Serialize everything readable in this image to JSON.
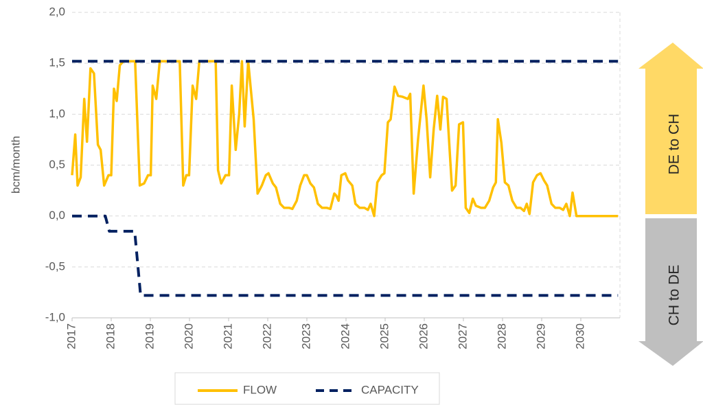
{
  "chart_data": {
    "type": "line",
    "y_label": "bcm/month",
    "xlim": [
      2017,
      2031
    ],
    "xticks": [
      2017,
      2018,
      2019,
      2020,
      2021,
      2022,
      2023,
      2024,
      2025,
      2026,
      2027,
      2028,
      2029,
      2030
    ],
    "ylim": [
      -1.0,
      2.0
    ],
    "yticks": [
      {
        "value": -1.0,
        "label": "-1,0"
      },
      {
        "value": -0.5,
        "label": "-0,5"
      },
      {
        "value": 0.0,
        "label": "0,0"
      },
      {
        "value": 0.5,
        "label": "0,5"
      },
      {
        "value": 1.0,
        "label": "1,0"
      },
      {
        "value": 1.5,
        "label": "1,5"
      },
      {
        "value": 2.0,
        "label": "2,0"
      }
    ],
    "grid": true,
    "legend": "bottom",
    "annotations": [
      "DE to CH",
      "CH to DE"
    ],
    "series": [
      {
        "name": "FLOW",
        "color": "#FFC000",
        "style": "solid",
        "x": [
          2017.0,
          2017.08,
          2017.14,
          2017.22,
          2017.31,
          2017.38,
          2017.47,
          2017.56,
          2017.66,
          2017.73,
          2017.82,
          2017.93,
          2018.0,
          2018.07,
          2018.14,
          2018.22,
          2018.31,
          2018.61,
          2018.73,
          2018.84,
          2018.94,
          2019.01,
          2019.06,
          2019.15,
          2019.24,
          2019.75,
          2019.84,
          2019.92,
          2019.99,
          2020.08,
          2020.17,
          2020.25,
          2020.67,
          2020.73,
          2020.81,
          2020.92,
          2021.01,
          2021.08,
          2021.18,
          2021.27,
          2021.34,
          2021.41,
          2021.5,
          2021.64,
          2021.74,
          2021.85,
          2021.95,
          2022.02,
          2022.13,
          2022.21,
          2022.32,
          2022.42,
          2022.55,
          2022.63,
          2022.74,
          2022.83,
          2022.93,
          2023.0,
          2023.09,
          2023.18,
          2023.28,
          2023.39,
          2023.51,
          2023.6,
          2023.7,
          2023.75,
          2023.81,
          2023.88,
          2023.98,
          2024.05,
          2024.16,
          2024.24,
          2024.35,
          2024.47,
          2024.56,
          2024.63,
          2024.72,
          2024.8,
          2024.91,
          2024.98,
          2025.07,
          2025.14,
          2025.24,
          2025.33,
          2025.45,
          2025.58,
          2025.64,
          2025.73,
          2025.84,
          2025.98,
          2026.06,
          2026.15,
          2026.24,
          2026.33,
          2026.41,
          2026.48,
          2026.57,
          2026.71,
          2026.8,
          2026.89,
          2026.99,
          2027.06,
          2027.15,
          2027.24,
          2027.32,
          2027.45,
          2027.55,
          2027.66,
          2027.76,
          2027.83,
          2027.88,
          2027.97,
          2028.06,
          2028.15,
          2028.25,
          2028.36,
          2028.46,
          2028.55,
          2028.62,
          2028.69,
          2028.78,
          2028.88,
          2028.97,
          2029.06,
          2029.14,
          2029.25,
          2029.35,
          2029.46,
          2029.55,
          2029.63,
          2029.72,
          2029.79,
          2029.89,
          2030.95
        ],
        "values": [
          0.4,
          0.8,
          0.3,
          0.38,
          1.15,
          0.73,
          1.45,
          1.4,
          0.7,
          0.65,
          0.3,
          0.4,
          0.4,
          1.25,
          1.13,
          1.48,
          1.52,
          1.52,
          0.3,
          0.32,
          0.4,
          0.4,
          1.28,
          1.15,
          1.52,
          1.52,
          0.3,
          0.4,
          0.4,
          1.28,
          1.15,
          1.52,
          1.52,
          0.45,
          0.32,
          0.4,
          0.4,
          1.28,
          0.65,
          1.0,
          1.52,
          0.88,
          1.52,
          0.95,
          0.22,
          0.3,
          0.4,
          0.42,
          0.32,
          0.28,
          0.12,
          0.08,
          0.08,
          0.07,
          0.15,
          0.3,
          0.4,
          0.4,
          0.32,
          0.28,
          0.12,
          0.08,
          0.08,
          0.07,
          0.22,
          0.2,
          0.15,
          0.4,
          0.42,
          0.35,
          0.3,
          0.12,
          0.08,
          0.08,
          0.06,
          0.12,
          0.0,
          0.33,
          0.4,
          0.42,
          0.92,
          0.95,
          1.27,
          1.18,
          1.17,
          1.15,
          1.2,
          0.22,
          0.75,
          1.28,
          0.95,
          0.38,
          0.85,
          1.18,
          0.85,
          1.17,
          1.15,
          0.25,
          0.3,
          0.9,
          0.92,
          0.08,
          0.03,
          0.17,
          0.1,
          0.08,
          0.08,
          0.15,
          0.28,
          0.33,
          0.95,
          0.72,
          0.33,
          0.3,
          0.15,
          0.08,
          0.08,
          0.05,
          0.12,
          0.02,
          0.33,
          0.4,
          0.42,
          0.35,
          0.3,
          0.12,
          0.08,
          0.08,
          0.06,
          0.12,
          0.0,
          0.23,
          0.0,
          0.0
        ]
      },
      {
        "name": "CAPACITY",
        "color": "#002060",
        "style": "dashed",
        "x": [
          2017.0,
          2030.95,
          2030.95,
          2017.0,
          2017.85,
          2017.95,
          2018.6,
          2018.75,
          2030.95
        ],
        "values": [
          1.52,
          1.52,
          null,
          0.0,
          0.0,
          -0.15,
          -0.15,
          -0.78,
          -0.78
        ]
      }
    ]
  }
}
